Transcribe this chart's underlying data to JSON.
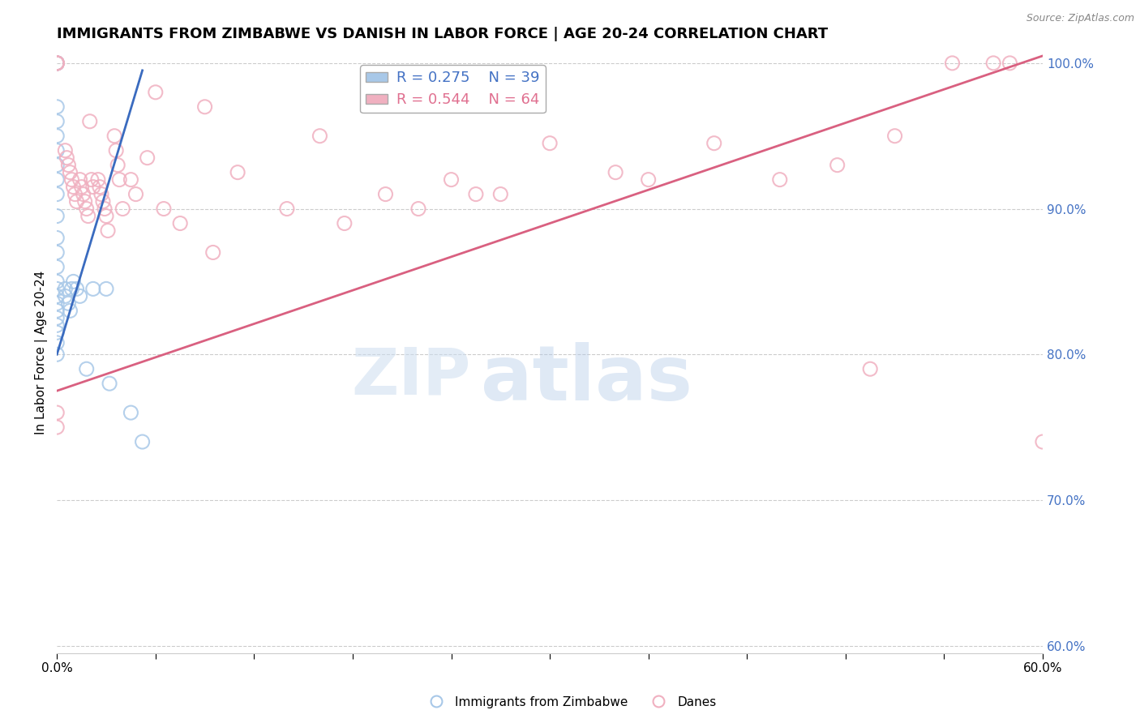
{
  "title": "IMMIGRANTS FROM ZIMBABWE VS DANISH IN LABOR FORCE | AGE 20-24 CORRELATION CHART",
  "source": "Source: ZipAtlas.com",
  "ylabel": "In Labor Force | Age 20-24",
  "xlim": [
    0.0,
    0.6
  ],
  "ylim": [
    0.595,
    1.008
  ],
  "xticks": [
    0.0,
    0.06,
    0.12,
    0.18,
    0.24,
    0.3,
    0.36,
    0.42,
    0.48,
    0.54,
    0.6
  ],
  "xtick_labels": [
    "0.0%",
    "",
    "",
    "",
    "",
    "",
    "",
    "",
    "",
    "",
    "60.0%"
  ],
  "yticks": [
    0.6,
    0.7,
    0.8,
    0.9,
    1.0
  ],
  "legend_R1": "R = 0.275",
  "legend_N1": "N = 39",
  "legend_R2": "R = 0.544",
  "legend_N2": "N = 64",
  "blue_color": "#a8c8e8",
  "pink_color": "#f0b0c0",
  "blue_edge_color": "#7099cc",
  "pink_edge_color": "#e08090",
  "blue_line_color": "#3a6bbf",
  "pink_line_color": "#d96080",
  "blue_legend_color": "#4472c4",
  "pink_legend_color": "#e07090",
  "watermark_zip": "ZIP",
  "watermark_atlas": "atlas",
  "right_tick_color": "#4472c4",
  "grid_color": "#cccccc",
  "background_color": "#ffffff",
  "blue_scatter_x": [
    0.0,
    0.0,
    0.0,
    0.0,
    0.0,
    0.0,
    0.0,
    0.0,
    0.0,
    0.0,
    0.0,
    0.0,
    0.0,
    0.0,
    0.0,
    0.0,
    0.0,
    0.0,
    0.0,
    0.0,
    0.0,
    0.0,
    0.0,
    0.0,
    0.0,
    0.005,
    0.005,
    0.007,
    0.008,
    0.009,
    0.01,
    0.012,
    0.014,
    0.018,
    0.022,
    0.03,
    0.032,
    0.045,
    0.052
  ],
  "blue_scatter_y": [
    1.0,
    1.0,
    1.0,
    1.0,
    0.97,
    0.96,
    0.95,
    0.94,
    0.93,
    0.92,
    0.91,
    0.895,
    0.88,
    0.87,
    0.86,
    0.85,
    0.845,
    0.84,
    0.835,
    0.83,
    0.825,
    0.82,
    0.815,
    0.808,
    0.8,
    0.845,
    0.84,
    0.835,
    0.83,
    0.845,
    0.85,
    0.845,
    0.84,
    0.79,
    0.845,
    0.845,
    0.78,
    0.76,
    0.74
  ],
  "pink_scatter_x": [
    0.0,
    0.0,
    0.0,
    0.0,
    0.0,
    0.0,
    0.005,
    0.006,
    0.007,
    0.008,
    0.009,
    0.01,
    0.011,
    0.012,
    0.014,
    0.015,
    0.016,
    0.017,
    0.018,
    0.019,
    0.02,
    0.021,
    0.022,
    0.025,
    0.026,
    0.027,
    0.028,
    0.029,
    0.03,
    0.031,
    0.035,
    0.036,
    0.037,
    0.038,
    0.04,
    0.045,
    0.048,
    0.055,
    0.06,
    0.065,
    0.075,
    0.09,
    0.095,
    0.11,
    0.14,
    0.16,
    0.175,
    0.2,
    0.22,
    0.24,
    0.255,
    0.27,
    0.3,
    0.34,
    0.36,
    0.4,
    0.44,
    0.475,
    0.495,
    0.51,
    0.545,
    0.57,
    0.58,
    0.6
  ],
  "pink_scatter_y": [
    1.0,
    1.0,
    1.0,
    1.0,
    0.76,
    0.75,
    0.94,
    0.935,
    0.93,
    0.925,
    0.92,
    0.915,
    0.91,
    0.905,
    0.92,
    0.915,
    0.91,
    0.905,
    0.9,
    0.895,
    0.96,
    0.92,
    0.915,
    0.92,
    0.915,
    0.91,
    0.905,
    0.9,
    0.895,
    0.885,
    0.95,
    0.94,
    0.93,
    0.92,
    0.9,
    0.92,
    0.91,
    0.935,
    0.98,
    0.9,
    0.89,
    0.97,
    0.87,
    0.925,
    0.9,
    0.95,
    0.89,
    0.91,
    0.9,
    0.92,
    0.91,
    0.91,
    0.945,
    0.925,
    0.92,
    0.945,
    0.92,
    0.93,
    0.79,
    0.95,
    1.0,
    1.0,
    1.0,
    0.74
  ],
  "blue_trend_x": [
    0.0,
    0.052
  ],
  "blue_trend_y": [
    0.8,
    0.995
  ],
  "pink_trend_x": [
    0.0,
    0.6
  ],
  "pink_trend_y": [
    0.775,
    1.005
  ],
  "title_fontsize": 13,
  "axis_label_fontsize": 11,
  "tick_fontsize": 11,
  "legend_fontsize": 13,
  "watermark_fontsize_zip": 58,
  "watermark_fontsize_atlas": 68
}
